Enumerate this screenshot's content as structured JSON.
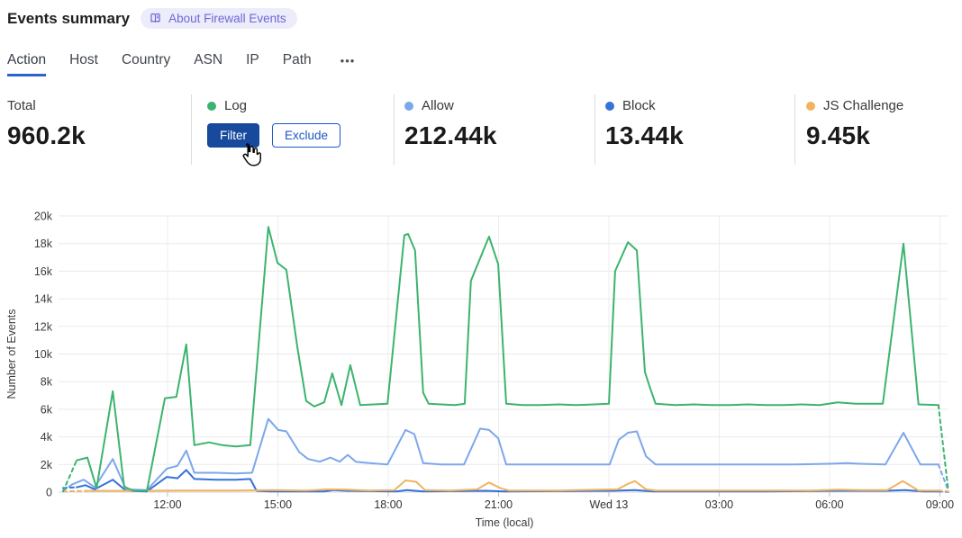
{
  "header": {
    "title": "Events summary",
    "about_badge": "About Firewall Events"
  },
  "tabs": {
    "items": [
      {
        "label": "Action",
        "active": true
      },
      {
        "label": "Host",
        "active": false
      },
      {
        "label": "Country",
        "active": false
      },
      {
        "label": "ASN",
        "active": false
      },
      {
        "label": "IP",
        "active": false
      },
      {
        "label": "Path",
        "active": false
      }
    ],
    "more_label": "•••"
  },
  "stats": {
    "total": {
      "label": "Total",
      "value": "960.2k"
    },
    "log": {
      "label": "Log",
      "color": "#3cb46e",
      "filter_label": "Filter",
      "exclude_label": "Exclude"
    },
    "allow": {
      "label": "Allow",
      "color": "#7da7ec",
      "value": "212.44k"
    },
    "block": {
      "label": "Block",
      "color": "#3572dc",
      "value": "13.44k"
    },
    "js_challenge": {
      "label": "JS Challenge",
      "color": "#f1b35f",
      "value": "9.45k"
    }
  },
  "chart_data": {
    "type": "line",
    "xlabel": "Time (local)",
    "ylabel": "Number of Events",
    "x_unit_note": "t = hours since Tue 09:00 local; first and last segments drawn dashed (partial buckets)",
    "x_range": [
      0.11,
      24.21
    ],
    "ylim": [
      0,
      20000
    ],
    "y_tick_step": 2000,
    "y_tick_labels": [
      "0",
      "2k",
      "4k",
      "6k",
      "8k",
      "10k",
      "12k",
      "14k",
      "16k",
      "18k",
      "20k"
    ],
    "x_ticks": [
      {
        "t": 3,
        "label": "12:00"
      },
      {
        "t": 6,
        "label": "15:00"
      },
      {
        "t": 9,
        "label": "18:00"
      },
      {
        "t": 12,
        "label": "21:00"
      },
      {
        "t": 15,
        "label": "Wed 13"
      },
      {
        "t": 18,
        "label": "03:00"
      },
      {
        "t": 21,
        "label": "06:00"
      },
      {
        "t": 24,
        "label": "09:00"
      }
    ],
    "grid": true,
    "legend_position": "top-stats-row",
    "series": [
      {
        "name": "Allow",
        "color": "#7da7ec",
        "points": [
          [
            0.16,
            100
          ],
          [
            0.4,
            550
          ],
          [
            0.72,
            900
          ],
          [
            1.02,
            350
          ],
          [
            1.51,
            2400
          ],
          [
            1.87,
            200
          ],
          [
            2.44,
            150
          ],
          [
            2.98,
            1700
          ],
          [
            3.27,
            1900
          ],
          [
            3.51,
            3000
          ],
          [
            3.73,
            1400
          ],
          [
            4.32,
            1400
          ],
          [
            4.86,
            1350
          ],
          [
            5.3,
            1400
          ],
          [
            5.74,
            5300
          ],
          [
            6.01,
            4500
          ],
          [
            6.23,
            4400
          ],
          [
            6.58,
            2900
          ],
          [
            6.82,
            2400
          ],
          [
            7.14,
            2200
          ],
          [
            7.43,
            2500
          ],
          [
            7.68,
            2200
          ],
          [
            7.9,
            2700
          ],
          [
            8.12,
            2200
          ],
          [
            8.49,
            2100
          ],
          [
            8.98,
            2000
          ],
          [
            9.47,
            4500
          ],
          [
            9.71,
            4200
          ],
          [
            9.95,
            2100
          ],
          [
            10.44,
            2000
          ],
          [
            11.06,
            2000
          ],
          [
            11.5,
            4600
          ],
          [
            11.74,
            4500
          ],
          [
            11.99,
            3900
          ],
          [
            12.21,
            2000
          ],
          [
            13.14,
            2000
          ],
          [
            14.12,
            2000
          ],
          [
            15.02,
            2000
          ],
          [
            15.27,
            3800
          ],
          [
            15.52,
            4300
          ],
          [
            15.76,
            4400
          ],
          [
            16.01,
            2600
          ],
          [
            16.27,
            2000
          ],
          [
            17.06,
            2000
          ],
          [
            18.04,
            2000
          ],
          [
            19.02,
            2000
          ],
          [
            20.0,
            2000
          ],
          [
            20.98,
            2050
          ],
          [
            21.47,
            2100
          ],
          [
            21.83,
            2050
          ],
          [
            22.52,
            2000
          ],
          [
            23.01,
            4300
          ],
          [
            23.47,
            2000
          ],
          [
            23.96,
            2000
          ],
          [
            24.23,
            100
          ]
        ]
      },
      {
        "name": "Block",
        "color": "#3572dc",
        "points": [
          [
            0.16,
            300
          ],
          [
            0.53,
            350
          ],
          [
            0.77,
            500
          ],
          [
            1.02,
            200
          ],
          [
            1.51,
            900
          ],
          [
            1.87,
            100
          ],
          [
            2.44,
            50
          ],
          [
            2.98,
            1100
          ],
          [
            3.27,
            1000
          ],
          [
            3.51,
            1600
          ],
          [
            3.73,
            950
          ],
          [
            4.32,
            900
          ],
          [
            4.86,
            900
          ],
          [
            5.25,
            950
          ],
          [
            5.42,
            100
          ],
          [
            5.79,
            50
          ],
          [
            7.26,
            50
          ],
          [
            7.51,
            150
          ],
          [
            7.87,
            100
          ],
          [
            9.22,
            50
          ],
          [
            9.51,
            150
          ],
          [
            9.95,
            50
          ],
          [
            11.67,
            100
          ],
          [
            12.16,
            50
          ],
          [
            15.1,
            100
          ],
          [
            15.71,
            150
          ],
          [
            16.2,
            50
          ],
          [
            19.26,
            50
          ],
          [
            21.22,
            100
          ],
          [
            22.52,
            100
          ],
          [
            23.06,
            150
          ],
          [
            23.55,
            50
          ],
          [
            23.96,
            50
          ],
          [
            24.23,
            20
          ]
        ]
      },
      {
        "name": "JS Challenge",
        "color": "#f1b35f",
        "points": [
          [
            0.16,
            50
          ],
          [
            0.89,
            100
          ],
          [
            2.44,
            100
          ],
          [
            3.34,
            120
          ],
          [
            4.81,
            120
          ],
          [
            5.79,
            150
          ],
          [
            6.77,
            120
          ],
          [
            7.38,
            200
          ],
          [
            7.87,
            180
          ],
          [
            8.49,
            120
          ],
          [
            9.17,
            150
          ],
          [
            9.47,
            850
          ],
          [
            9.76,
            750
          ],
          [
            10.0,
            150
          ],
          [
            10.69,
            120
          ],
          [
            11.42,
            200
          ],
          [
            11.74,
            700
          ],
          [
            12.04,
            300
          ],
          [
            12.28,
            120
          ],
          [
            13.63,
            120
          ],
          [
            15.24,
            200
          ],
          [
            15.52,
            600
          ],
          [
            15.71,
            800
          ],
          [
            16.01,
            200
          ],
          [
            16.27,
            120
          ],
          [
            18.04,
            120
          ],
          [
            20.49,
            120
          ],
          [
            21.22,
            180
          ],
          [
            21.83,
            150
          ],
          [
            22.57,
            150
          ],
          [
            22.99,
            800
          ],
          [
            23.42,
            120
          ],
          [
            23.96,
            120
          ],
          [
            24.23,
            50
          ]
        ]
      },
      {
        "name": "Log",
        "color": "#3cb46e",
        "points": [
          [
            0.16,
            50
          ],
          [
            0.53,
            2300
          ],
          [
            0.82,
            2500
          ],
          [
            1.07,
            300
          ],
          [
            1.51,
            7300
          ],
          [
            1.82,
            400
          ],
          [
            2.07,
            100
          ],
          [
            2.44,
            100
          ],
          [
            2.93,
            6800
          ],
          [
            3.24,
            6900
          ],
          [
            3.51,
            10700
          ],
          [
            3.73,
            3400
          ],
          [
            4.13,
            3600
          ],
          [
            4.49,
            3400
          ],
          [
            4.86,
            3300
          ],
          [
            5.25,
            3400
          ],
          [
            5.74,
            19200
          ],
          [
            5.99,
            16600
          ],
          [
            6.23,
            16100
          ],
          [
            6.53,
            10500
          ],
          [
            6.77,
            6600
          ],
          [
            6.99,
            6200
          ],
          [
            7.26,
            6500
          ],
          [
            7.48,
            8600
          ],
          [
            7.73,
            6300
          ],
          [
            7.97,
            9200
          ],
          [
            8.24,
            6300
          ],
          [
            8.61,
            6350
          ],
          [
            8.98,
            6400
          ],
          [
            9.44,
            18600
          ],
          [
            9.54,
            18700
          ],
          [
            9.73,
            17500
          ],
          [
            9.95,
            7200
          ],
          [
            10.1,
            6400
          ],
          [
            10.44,
            6350
          ],
          [
            10.81,
            6300
          ],
          [
            11.08,
            6400
          ],
          [
            11.25,
            15300
          ],
          [
            11.74,
            18500
          ],
          [
            11.99,
            16500
          ],
          [
            12.21,
            6400
          ],
          [
            12.65,
            6300
          ],
          [
            13.14,
            6300
          ],
          [
            13.63,
            6350
          ],
          [
            14.12,
            6300
          ],
          [
            14.61,
            6350
          ],
          [
            15.0,
            6400
          ],
          [
            15.17,
            16000
          ],
          [
            15.52,
            18100
          ],
          [
            15.76,
            17500
          ],
          [
            15.98,
            8700
          ],
          [
            16.1,
            7700
          ],
          [
            16.27,
            6400
          ],
          [
            16.81,
            6300
          ],
          [
            17.3,
            6350
          ],
          [
            17.79,
            6300
          ],
          [
            18.28,
            6300
          ],
          [
            18.77,
            6350
          ],
          [
            19.26,
            6300
          ],
          [
            19.75,
            6300
          ],
          [
            20.24,
            6350
          ],
          [
            20.73,
            6300
          ],
          [
            21.22,
            6500
          ],
          [
            21.71,
            6400
          ],
          [
            22.08,
            6400
          ],
          [
            22.45,
            6400
          ],
          [
            23.01,
            18000
          ],
          [
            23.42,
            6350
          ],
          [
            23.96,
            6300
          ],
          [
            24.23,
            100
          ]
        ]
      }
    ]
  }
}
